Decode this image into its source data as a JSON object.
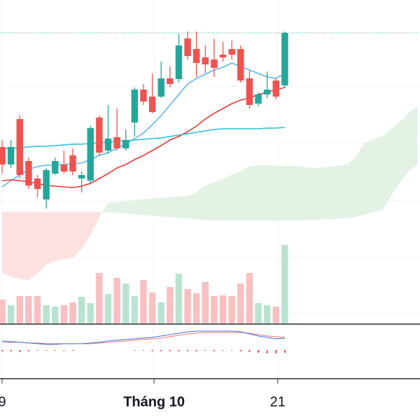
{
  "chart_data": {
    "type": "candlestick",
    "x": [
      0,
      1,
      2,
      3,
      4,
      5,
      6,
      7,
      8,
      9,
      10,
      11,
      12,
      13,
      14,
      15,
      16,
      17,
      18,
      19,
      20,
      21,
      22,
      23,
      24,
      25,
      26,
      27,
      28,
      29,
      30,
      31,
      32
    ],
    "open": [
      290,
      265,
      330,
      270,
      245,
      215,
      252,
      265,
      278,
      245,
      242,
      332,
      285,
      304,
      288,
      325,
      372,
      362,
      362,
      388,
      387,
      445,
      430,
      418,
      415,
      422,
      430,
      430,
      388,
      352,
      365,
      385,
      378
    ],
    "high": [
      300,
      300,
      335,
      275,
      250,
      260,
      275,
      285,
      288,
      255,
      320,
      335,
      350,
      345,
      315,
      375,
      380,
      395,
      412,
      405,
      452,
      455,
      455,
      435,
      445,
      440,
      442,
      435,
      400,
      368,
      398,
      388,
      455
    ],
    "low": [
      252,
      260,
      245,
      230,
      218,
      202,
      250,
      252,
      250,
      225,
      238,
      278,
      280,
      285,
      285,
      305,
      350,
      338,
      360,
      375,
      382,
      415,
      390,
      395,
      390,
      412,
      415,
      382,
      345,
      348,
      360,
      358,
      374
    ],
    "close": [
      265,
      290,
      250,
      235,
      230,
      257,
      270,
      255,
      255,
      250,
      317,
      282,
      302,
      288,
      300,
      372,
      355,
      340,
      388,
      380,
      435,
      420,
      410,
      408,
      403,
      418,
      422,
      385,
      350,
      365,
      372,
      362,
      453
    ],
    "up_color": "#26a69a",
    "down_color": "#ef5350",
    "xlim": [
      -0.24,
      47.3
    ],
    "ylim": [
      40,
      500
    ],
    "xticks": [
      {
        "value": 0,
        "label": "9"
      },
      {
        "value": 17.2,
        "label": "Tháng 10"
      },
      {
        "value": 31.2,
        "label": "21"
      }
    ],
    "last_price_line": true,
    "volume": {
      "values": [
        34,
        26,
        39,
        39,
        39,
        26,
        24,
        26,
        30,
        38,
        29,
        72,
        42,
        65,
        57,
        39,
        62,
        44,
        30,
        52,
        71,
        49,
        43,
        59,
        39,
        40,
        39,
        57,
        72,
        29,
        26,
        24,
        112
      ],
      "ylim": [
        0,
        120
      ],
      "up_color": "#b9e3d0",
      "down_color": "#f8c0c1"
    },
    "ma": [
      {
        "color": "#5bb8e8",
        "values": [
          233,
          242,
          250,
          258,
          262,
          264,
          264,
          265,
          266,
          267,
          272,
          278,
          282,
          288,
          295,
          302,
          310,
          322,
          335,
          350,
          365,
          380,
          388,
          394,
          400,
          404,
          410,
          405,
          400,
          395,
          390,
          388,
          395
        ]
      },
      {
        "color": "#e53935",
        "values": [
          242,
          243,
          242,
          240,
          238,
          235,
          234,
          233,
          232,
          234,
          238,
          245,
          252,
          260,
          265,
          272,
          278,
          285,
          292,
          300,
          305,
          312,
          320,
          330,
          338,
          345,
          352,
          357,
          360,
          365,
          368,
          372,
          375
        ]
      },
      {
        "color": "#26c0d3",
        "values": [
          288,
          288,
          289,
          290,
          291,
          291,
          292,
          293,
          294,
          294,
          295,
          296,
          297,
          298,
          299,
          300,
          301,
          302,
          303,
          305,
          307,
          309,
          311,
          313,
          315,
          316,
          316,
          316,
          316,
          316,
          317,
          317,
          318
        ]
      }
    ],
    "cloud": {
      "x": [
        0,
        1,
        2,
        3,
        4,
        5,
        6,
        7,
        8,
        9,
        10,
        11,
        12,
        13,
        14,
        15,
        16,
        17,
        18,
        19,
        20,
        21,
        22,
        23,
        24,
        25,
        26,
        27,
        28,
        29,
        30,
        31,
        32,
        33,
        34,
        35,
        36,
        37,
        38,
        39,
        40,
        41,
        42,
        43,
        44,
        45,
        46,
        47
      ],
      "span_a": [
        110,
        105,
        102,
        100,
        110,
        122,
        128,
        130,
        132,
        145,
        165,
        190,
        210,
        211,
        212,
        214,
        215,
        216,
        217,
        218,
        219,
        220,
        225,
        235,
        240,
        245,
        250,
        255,
        262,
        264,
        264,
        263,
        263,
        263,
        262,
        260,
        260,
        262,
        263,
        265,
        275,
        295,
        300,
        305,
        315,
        325,
        338,
        348
      ],
      "span_b": [
        197,
        197,
        197,
        197,
        197,
        197,
        197,
        197,
        197,
        197,
        197,
        197,
        197,
        196,
        195,
        194,
        193,
        192,
        191,
        190,
        189,
        188,
        187,
        186,
        185,
        185,
        185,
        185,
        185,
        185,
        185,
        185,
        185,
        185,
        185,
        186,
        187,
        187,
        188,
        188,
        190,
        194,
        197,
        200,
        220,
        240,
        255,
        265
      ],
      "up_color": "#e4f2e5",
      "down_color": "#fde1e1"
    },
    "macd": {
      "ylim": [
        -40,
        35
      ],
      "macd": {
        "color": "#3f6fe0",
        "values": [
          13,
          12,
          11,
          10,
          9,
          8,
          8,
          9,
          9,
          9,
          10,
          11,
          13,
          14,
          15,
          16,
          17,
          18,
          20,
          22,
          24,
          26,
          27,
          27,
          27,
          27,
          27,
          26,
          23,
          20,
          18,
          16,
          17
        ]
      },
      "signal": {
        "color": "#f0776f",
        "values": [
          11,
          11,
          11,
          10,
          10,
          9,
          9,
          9,
          9,
          9,
          9,
          10,
          11,
          12,
          13,
          14,
          15,
          16,
          17,
          19,
          21,
          23,
          24,
          25,
          25,
          25,
          25,
          25,
          24,
          22,
          20,
          19,
          18
        ]
      },
      "histogram": {
        "color": "#ef5350",
        "values": [
          -2,
          -2,
          -3,
          -2,
          -1,
          -1,
          -1,
          -1,
          -1,
          0,
          0,
          0,
          0,
          0,
          0,
          -1,
          -1,
          -2,
          -2,
          -2,
          -2,
          -2,
          -2,
          -1,
          -2,
          -1,
          -1,
          -2,
          -3,
          -4,
          -5,
          -5,
          -4
        ]
      }
    }
  }
}
